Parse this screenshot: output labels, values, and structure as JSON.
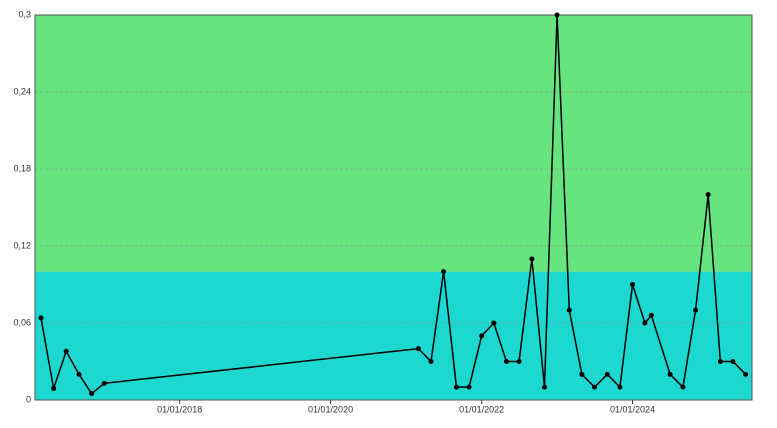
{
  "chart_data": {
    "type": "line",
    "x": [
      "2016-03-01",
      "2016-05-01",
      "2016-07-01",
      "2016-09-01",
      "2016-11-01",
      "2017-01-01",
      "2021-03-01",
      "2021-05-01",
      "2021-07-01",
      "2021-09-01",
      "2021-11-01",
      "2022-01-01",
      "2022-03-01",
      "2022-05-01",
      "2022-07-01",
      "2022-09-01",
      "2022-11-01",
      "2023-01-01",
      "2023-03-01",
      "2023-05-01",
      "2023-07-01",
      "2023-09-01",
      "2023-11-01",
      "2024-01-01",
      "2024-03-01",
      "2024-04-01",
      "2024-07-01",
      "2024-09-01",
      "2024-11-01",
      "2025-01-01",
      "2025-03-01",
      "2025-05-01",
      "2025-07-01"
    ],
    "series": [
      {
        "color": "#000000",
        "values": [
          0.064,
          0.009,
          0.038,
          0.02,
          0.005,
          0.013,
          0.04,
          0.03,
          0.1,
          0.01,
          0.01,
          0.05,
          0.06,
          0.03,
          0.03,
          0.11,
          0.01,
          0.3,
          0.07,
          0.02,
          0.01,
          0.02,
          0.01,
          0.09,
          0.06,
          0.066,
          0.02,
          0.01,
          0.07,
          0.16,
          0.03,
          0.03,
          0.02
        ]
      }
    ],
    "xlim": [
      "2016-02-01",
      "2025-08-01"
    ],
    "xticks": [
      {
        "value": "2018-01-01",
        "label": "01/01/2018"
      },
      {
        "value": "2020-01-01",
        "label": "01/01/2020"
      },
      {
        "value": "2022-01-01",
        "label": "01/01/2022"
      },
      {
        "value": "2024-01-01",
        "label": "01/01/2024"
      }
    ],
    "ylim": [
      0,
      0.3
    ],
    "yticks": [
      0,
      {
        "value": 0.06,
        "label": "0,06"
      },
      {
        "value": 0.12,
        "label": "0,12"
      },
      {
        "value": 0.18,
        "label": "0,18"
      },
      {
        "value": 0.24,
        "label": "0,24"
      },
      {
        "value": 0.3,
        "label": "0,3"
      }
    ],
    "grid": true,
    "bands": [
      {
        "from": 0,
        "to": 0.1,
        "color": "#1dd8d0"
      },
      {
        "from": 0.1,
        "to": 0.3,
        "color": "#68e47e"
      }
    ]
  }
}
